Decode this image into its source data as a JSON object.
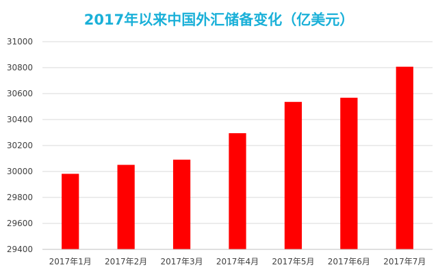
{
  "chart_data": {
    "type": "bar",
    "title": "2017年以来中国外汇储备变化（亿美元）",
    "categories": [
      "2017年1月",
      "2017年2月",
      "2017年3月",
      "2017年4月",
      "2017年5月",
      "2017年6月",
      "2017年7月"
    ],
    "values": [
      29982,
      30051,
      30091,
      30295,
      30536,
      30568,
      30807
    ],
    "ylim": [
      29400,
      31000
    ],
    "yticks": [
      29400,
      29600,
      29800,
      30000,
      30200,
      30400,
      30600,
      30800,
      31000
    ],
    "grid": true,
    "legend": "none",
    "colors": {
      "bar": "#ff0000",
      "title": "#1ab0d8",
      "grid": "#d9d9d9",
      "axis": "#bfbfbf",
      "tick_text": "#404040"
    }
  }
}
